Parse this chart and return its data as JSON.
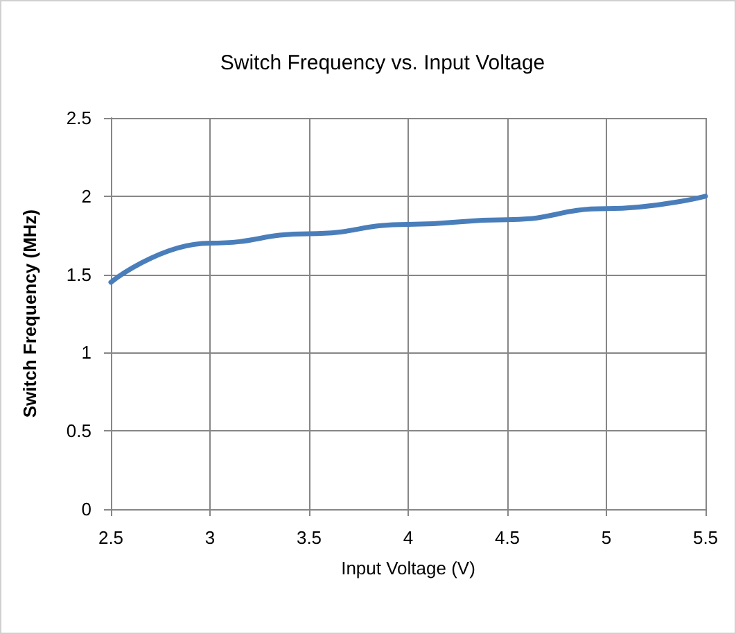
{
  "chart_data": {
    "type": "line",
    "title": "Switch Frequency vs. Input Voltage",
    "xlabel": "Input Voltage (V)",
    "ylabel": "Switch Frequency (MHz)",
    "x": [
      2.5,
      3,
      3.5,
      4,
      4.5,
      5,
      5.5
    ],
    "series": [
      {
        "color": "#4a7ebb",
        "values": [
          1.45,
          1.7,
          1.76,
          1.82,
          1.85,
          1.92,
          2.0
        ]
      }
    ],
    "xlim": [
      2.5,
      5.5
    ],
    "xticks": [
      2.5,
      3,
      3.5,
      4,
      4.5,
      5,
      5.5
    ],
    "ylim": [
      0,
      2.5
    ],
    "yticks": [
      0,
      0.5,
      1,
      1.5,
      2,
      2.5
    ],
    "grid": true,
    "marker": "none",
    "line_style": "solid"
  }
}
